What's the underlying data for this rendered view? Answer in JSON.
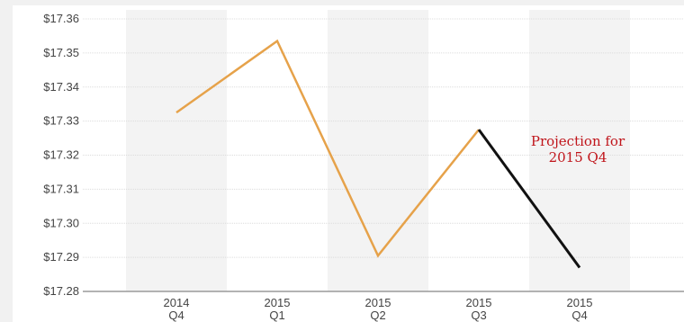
{
  "chart_data": {
    "type": "line",
    "title": "",
    "xlabel": "",
    "ylabel": "",
    "categories": [
      [
        "2014",
        "Q4"
      ],
      [
        "2015",
        "Q1"
      ],
      [
        "2015",
        "Q2"
      ],
      [
        "2015",
        "Q3"
      ],
      [
        "2015",
        "Q4"
      ]
    ],
    "y_ticks": [
      "$17.36",
      "$17.35",
      "$17.34",
      "$17.33",
      "$17.32",
      "$17.31",
      "$17.30",
      "$17.29",
      "$17.28"
    ],
    "ylim": [
      17.28,
      17.36
    ],
    "series": [
      {
        "values": [
          17.3325,
          17.3535,
          17.2905,
          17.3275,
          null
        ],
        "color": "#e6a24a"
      },
      {
        "values": [
          null,
          null,
          null,
          17.3275,
          17.287
        ],
        "color": "#111111"
      }
    ],
    "annotation": {
      "lines": [
        "Projection for",
        "2015 Q4"
      ],
      "color": "#c0151b"
    },
    "grid": true,
    "alternating_column_bands": true,
    "band_color": "#f3f3f3"
  }
}
